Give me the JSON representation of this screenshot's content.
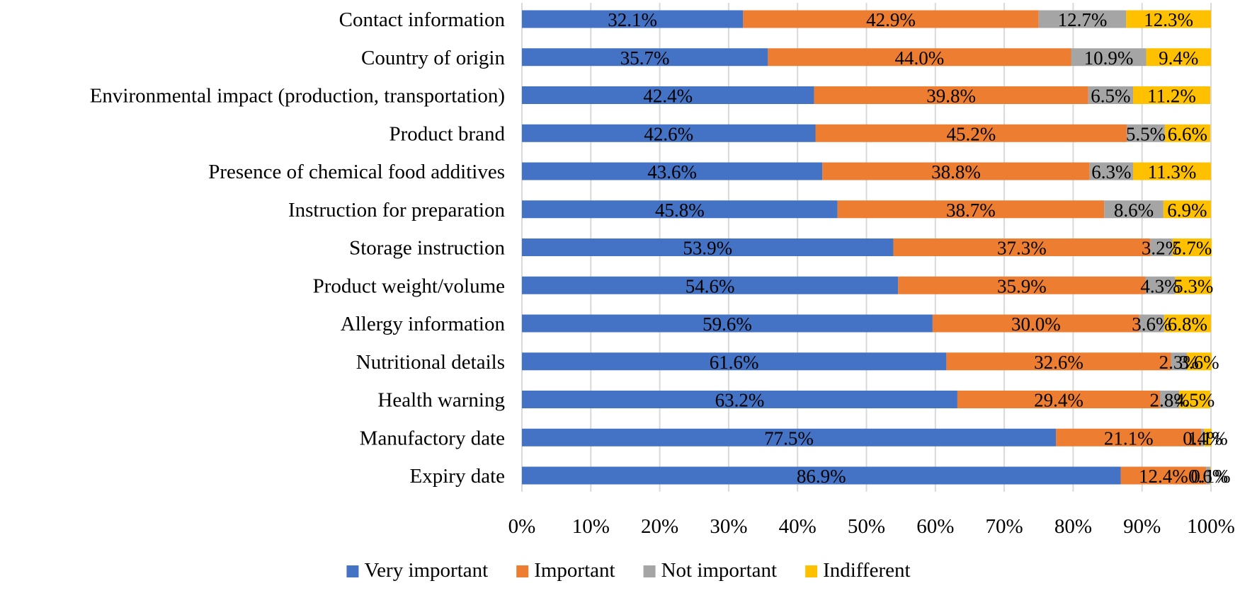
{
  "chart_data": {
    "type": "bar",
    "orientation": "horizontal",
    "stacked": "percent",
    "categories": [
      "Contact information",
      "Country of origin",
      "Environmental impact (production, transportation)",
      "Product brand",
      "Presence of chemical food additives",
      "Instruction for preparation",
      "Storage instruction",
      "Product weight/volume",
      "Allergy information",
      "Nutritional details",
      "Health warning",
      "Manufactory date",
      "Expiry date"
    ],
    "series": [
      {
        "name": "Very important",
        "color": "#4472c4",
        "values": [
          32.1,
          35.7,
          42.4,
          42.6,
          43.6,
          45.8,
          53.9,
          54.6,
          59.6,
          61.6,
          63.2,
          77.5,
          86.9
        ],
        "labels": [
          "32.1%",
          "35.7%",
          "42.4%",
          "42.6%",
          "43.6%",
          "45.8%",
          "53.9%",
          "54.6%",
          "59.6%",
          "61.6%",
          "63.2%",
          "77.5%",
          "86.9%"
        ]
      },
      {
        "name": "Important",
        "color": "#ed7d31",
        "values": [
          42.9,
          44.0,
          39.8,
          45.2,
          38.8,
          38.7,
          37.3,
          35.9,
          30.0,
          32.6,
          29.4,
          21.1,
          12.4
        ],
        "labels": [
          "42.9%",
          "44.0%",
          "39.8%",
          "45.2%",
          "38.8%",
          "38.7%",
          "37.3%",
          "35.9%",
          "30.0%",
          "32.6%",
          "29.4%",
          "21.1%",
          "12.4%"
        ]
      },
      {
        "name": "Not important",
        "color": "#a5a5a5",
        "values": [
          12.7,
          10.9,
          6.5,
          5.5,
          6.3,
          8.6,
          3.2,
          4.3,
          3.6,
          2.3,
          2.8,
          0.4,
          0.6
        ],
        "labels": [
          "12.7%",
          "10.9%",
          "6.5%",
          "5.5%",
          "6.3%",
          "8.6%",
          "3.2%",
          "4.3%",
          "3.6%",
          "2.3%",
          "2.8%",
          "0.4%",
          "0.6%"
        ]
      },
      {
        "name": "Indifferent",
        "color": "#ffc000",
        "values": [
          12.3,
          9.4,
          11.2,
          6.6,
          11.3,
          6.9,
          5.7,
          5.3,
          6.8,
          3.6,
          4.5,
          1.1,
          0.1
        ],
        "labels": [
          "12.3%",
          "9.4%",
          "11.2%",
          "6.6%",
          "11.3%",
          "6.9%",
          "5.7%",
          "5.3%",
          "6.8%",
          "3.6%",
          "4.5%",
          "1.1%",
          "0.1%"
        ]
      }
    ],
    "xlim": [
      0,
      100
    ],
    "x_ticks": [
      0,
      10,
      20,
      30,
      40,
      50,
      60,
      70,
      80,
      90,
      100
    ],
    "x_tick_labels": [
      "0%",
      "10%",
      "20%",
      "30%",
      "40%",
      "50%",
      "60%",
      "70%",
      "80%",
      "90%",
      "100%"
    ],
    "grid": "vertical",
    "legend_position": "bottom",
    "title": "",
    "xlabel": "",
    "ylabel": ""
  }
}
